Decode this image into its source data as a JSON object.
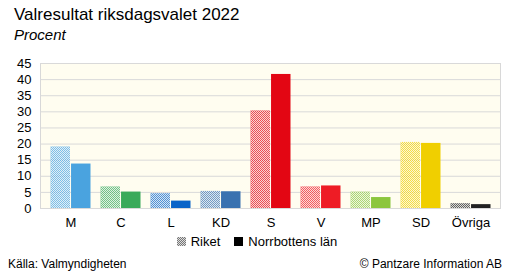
{
  "chart_data": {
    "type": "bar",
    "title": "Valresultat riksdagsvalet 2022",
    "subtitle": "Procent",
    "source": "Källa: Valmyndigheten",
    "credit": "© Pantzare Information AB",
    "categories": [
      "M",
      "C",
      "L",
      "KD",
      "S",
      "V",
      "MP",
      "SD",
      "Övriga"
    ],
    "colors": [
      "#4aa3df",
      "#3aaa5a",
      "#0a64c8",
      "#3a72b0",
      "#e30613",
      "#ee1c25",
      "#8cc63e",
      "#f0cf00",
      "#222222"
    ],
    "series": [
      {
        "name": "Riket",
        "color": "#777777",
        "marker": "hatched",
        "values": [
          19.1,
          6.7,
          4.6,
          5.3,
          30.3,
          6.7,
          5.1,
          20.5,
          1.5
        ]
      },
      {
        "name": "Norrbottens län",
        "color": "#000000",
        "marker": "solid",
        "values": [
          13.8,
          5.1,
          2.3,
          5.2,
          41.6,
          7.0,
          3.4,
          20.2,
          1.2
        ]
      }
    ],
    "ylim": [
      0,
      45
    ],
    "yticks": [
      0,
      5,
      10,
      15,
      20,
      25,
      30,
      35,
      40,
      45
    ],
    "grid": true,
    "legend": "bottom"
  }
}
